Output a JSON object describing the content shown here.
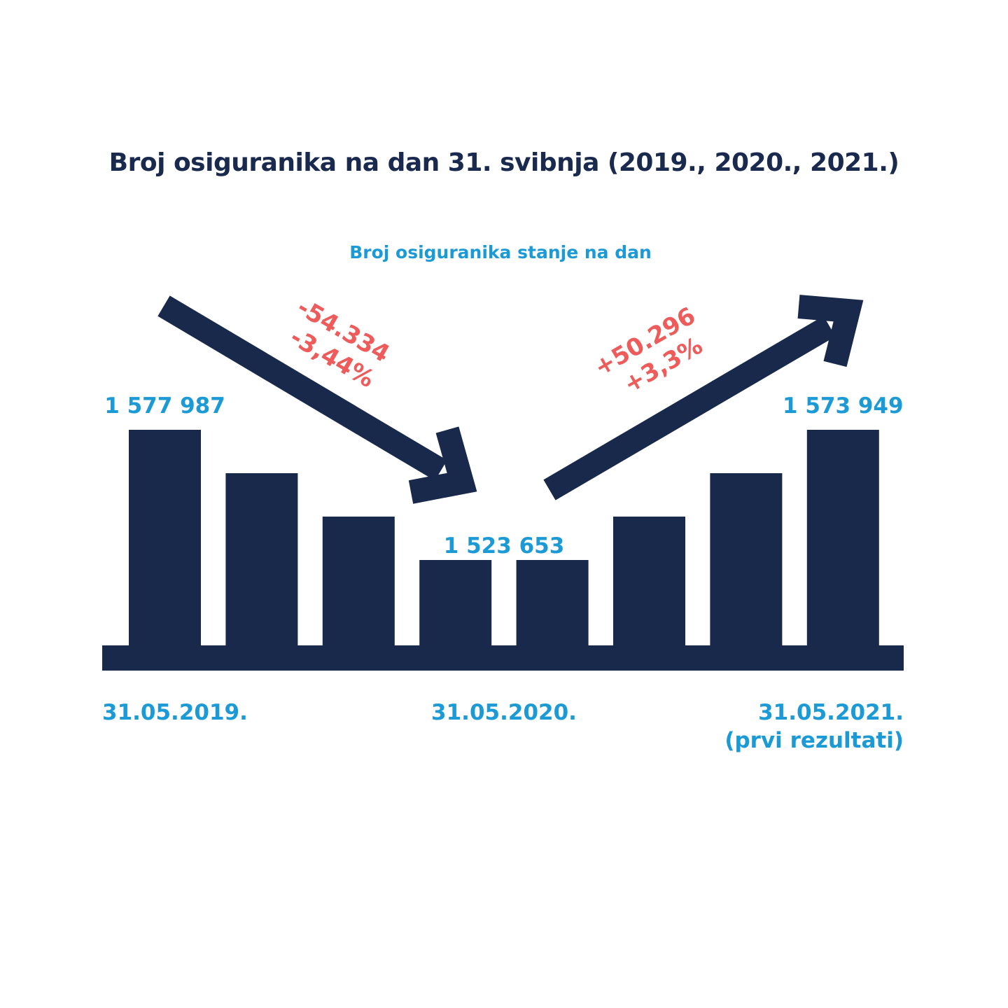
{
  "chart_data": {
    "type": "bar",
    "title": "Broj osiguranika na dan 31. svibnja (2019., 2020., 2021.)",
    "subtitle": "Broj osiguranika stanje na dan",
    "bar_levels": [
      100,
      80,
      60,
      40,
      40,
      60,
      80,
      100
    ],
    "value_labels": [
      {
        "bar_index": 0,
        "text": "1 577 987"
      },
      {
        "bar_index": 3,
        "text": "1 523 653"
      },
      {
        "bar_index": 7,
        "text": "1 573 949"
      }
    ],
    "date_labels": [
      {
        "bar_index": 0,
        "lines": [
          "31.05.2019."
        ]
      },
      {
        "bar_index": 3,
        "lines": [
          "31.05.2020."
        ]
      },
      {
        "bar_index": 7,
        "lines": [
          "31.05.2021.",
          "(prvi rezultati)"
        ]
      }
    ],
    "changes": [
      {
        "direction": "down",
        "lines": [
          "-54.334",
          "-3,44%"
        ]
      },
      {
        "direction": "up",
        "lines": [
          "+50.296",
          "+3,3%"
        ]
      }
    ],
    "colors": {
      "bars": "#19294b",
      "labels": "#1c9ad6",
      "changes": "#ee5b5b",
      "title": "#1a2a4f"
    }
  }
}
